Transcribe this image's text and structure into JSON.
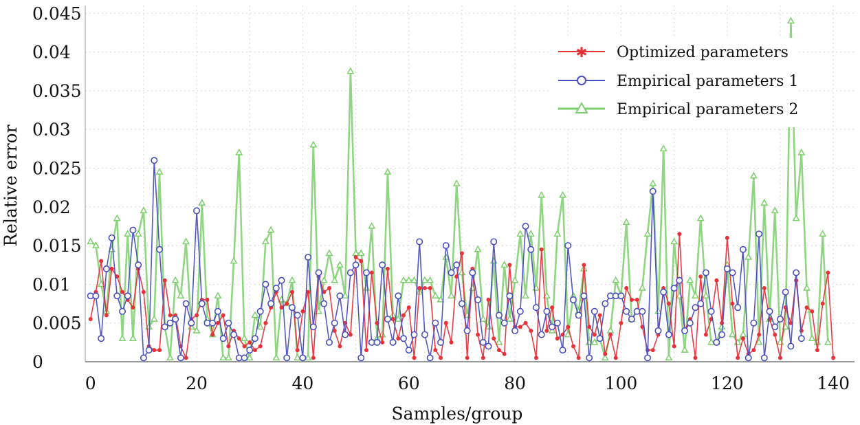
{
  "chart_data": {
    "type": "line",
    "title": "",
    "xlabel": "Samples/group",
    "ylabel": "Relative error",
    "xlim": [
      -1,
      144
    ],
    "ylim": [
      0,
      0.046
    ],
    "xticks": [
      0,
      20,
      40,
      60,
      80,
      100,
      120,
      140
    ],
    "xtick_labels": [
      "0",
      "20",
      "40",
      "60",
      "80",
      "100",
      "120",
      "140"
    ],
    "yticks": [
      0,
      0.005,
      0.01,
      0.015,
      0.02,
      0.025,
      0.03,
      0.035,
      0.04,
      0.045
    ],
    "ytick_labels": [
      "0",
      "0.005",
      "0.01",
      "0.015",
      "0.02",
      "0.025",
      "0.03",
      "0.035",
      "0.04",
      "0.045"
    ],
    "legend_position": "top-right",
    "series": [
      {
        "name": "Optimized parameters",
        "color": "#e8323a",
        "marker": "star",
        "values": [
          0.0055,
          0.009,
          0.013,
          0.006,
          0.012,
          0.011,
          0.009,
          0.008,
          0.007,
          0.012,
          0.009,
          0.002,
          0.0015,
          0.0015,
          0.0105,
          0.006,
          0.006,
          0.002,
          0.0005,
          0.0055,
          0.006,
          0.008,
          0.008,
          0.0035,
          0.005,
          0.006,
          0.002,
          0.004,
          0.003,
          0.002,
          0.0025,
          0.0015,
          0.002,
          0.005,
          0.007,
          0.009,
          0.007,
          0.0075,
          0.009,
          0.0015,
          0.0065,
          0.009,
          0.0005,
          0.011,
          0.009,
          0.0095,
          0.004,
          0.002,
          0.005,
          0.0035,
          0.0135,
          0.013,
          0.0015,
          0.0115,
          0.005,
          0.0025,
          0.012,
          0.0055,
          0.003,
          0.006,
          0.007,
          0.0005,
          0.0095,
          0.0095,
          0.0095,
          0.0015,
          0.0005,
          0.005,
          0.0025,
          0.011,
          0.014,
          0.0005,
          0.012,
          0.0035,
          0.0005,
          0.008,
          0.003,
          0.0015,
          0.001,
          0.0125,
          0.0045,
          0.0045,
          0.005,
          0.004,
          0.0005,
          0.0145,
          0.004,
          0.007,
          0.003,
          0.0035,
          0.0045,
          0.002,
          0.0005,
          0.0125,
          0.0045,
          0.0035,
          0.006,
          0.001,
          0.0035,
          0.0005,
          0.005,
          0.0095,
          0.008,
          0.008,
          0.0045,
          0.0015,
          0.0015,
          0.0035,
          0.0095,
          0.0075,
          0.002,
          0.0165,
          0.004,
          0.0055,
          0.0005,
          0.011,
          0.0035,
          0.0055,
          0.0105,
          0.005,
          0.016,
          0.0075,
          0.0005,
          0.003,
          0.001,
          0.0015,
          0.0035,
          0.0095,
          0.0055,
          0.0035,
          0.0005,
          0.007,
          0.005,
          0.0105,
          0.004,
          0.007,
          0.0065,
          0.0015,
          0.0075,
          0.0115,
          0.0005
        ]
      },
      {
        "name": "Empirical parameters 1",
        "color": "#4a4fc0",
        "marker": "circle",
        "values": [
          0.0085,
          0.0085,
          0.003,
          0.012,
          0.016,
          0.0085,
          0.0065,
          0.0085,
          0.017,
          0.0125,
          0.0005,
          0.0015,
          0.026,
          0.0145,
          0.0045,
          0.005,
          0.0055,
          0.0005,
          0.0075,
          0.005,
          0.0195,
          0.0075,
          0.005,
          0.005,
          0.0065,
          0.003,
          0.005,
          0.0035,
          0.0005,
          0.0005,
          0.0015,
          0.003,
          0.0065,
          0.01,
          0.0075,
          0.0095,
          0.0105,
          0.0005,
          0.007,
          0.006,
          0.0005,
          0.0135,
          0.0045,
          0.0115,
          0.0075,
          0.0025,
          0.005,
          0.0085,
          0.0035,
          0.0115,
          0.0125,
          0.0005,
          0.0115,
          0.0025,
          0.0025,
          0.0125,
          0.0055,
          0.0025,
          0.0085,
          0.003,
          0.0015,
          0.0035,
          0.0155,
          0.0035,
          0.0005,
          0.005,
          0.0025,
          0.015,
          0.0115,
          0.0125,
          0.0075,
          0.004,
          0.0115,
          0.008,
          0.0025,
          0.002,
          0.0155,
          0.006,
          0.005,
          0.0085,
          0.004,
          0.0065,
          0.0175,
          0.0145,
          0.007,
          0.0035,
          0.0065,
          0.0045,
          0.005,
          0.0015,
          0.015,
          0.008,
          0.006,
          0.0085,
          0.0005,
          0.0065,
          0.003,
          0.0075,
          0.0085,
          0.0085,
          0.0085,
          0.0065,
          0.0055,
          0.0065,
          0.0065,
          0.0005,
          0.022,
          0.004,
          0.009,
          0.0035,
          0.0095,
          0.0105,
          0.004,
          0.005,
          0.007,
          0.0075,
          0.0115,
          0.0065,
          0.0025,
          0.0035,
          0.012,
          0.0115,
          0.007,
          0.0145,
          0.0005,
          0.005,
          0.0165,
          0.0005,
          0.0065,
          0.0045,
          0.0055,
          0.009,
          0.002,
          0.0115,
          0.003
        ]
      },
      {
        "name": "Empirical parameters 2",
        "color": "#7ccf6c",
        "marker": "triangle",
        "values": [
          0.0155,
          0.015,
          0.01,
          0.0065,
          0.0145,
          0.0185,
          0.003,
          0.0165,
          0.003,
          0.0165,
          0.0195,
          0.0045,
          0.0055,
          0.0245,
          0.0045,
          0.0005,
          0.0105,
          0.0085,
          0.0155,
          0.0045,
          0.004,
          0.0205,
          0.0055,
          0.0035,
          0.0085,
          0.0005,
          0.0005,
          0.013,
          0.027,
          0.003,
          0.0005,
          0.006,
          0.0045,
          0.0155,
          0.017,
          0.0005,
          0.008,
          0.0075,
          0.0105,
          0.0005,
          0.0005,
          0.0005,
          0.028,
          0.0065,
          0.0105,
          0.014,
          0.0105,
          0.0125,
          0.0085,
          0.0375,
          0.014,
          0.014,
          0.0095,
          0.0175,
          0.003,
          0.0035,
          0.0245,
          0.006,
          0.0055,
          0.0105,
          0.0105,
          0.0105,
          0.009,
          0.0105,
          0.0105,
          0.0085,
          0.008,
          0.0135,
          0.0085,
          0.023,
          0.0115,
          0.006,
          0.0095,
          0.0145,
          0.0055,
          0.0045,
          0.013,
          0.0025,
          0.0125,
          0.0055,
          0.0105,
          0.0165,
          0.0085,
          0.0165,
          0.0095,
          0.0215,
          0.0085,
          0.004,
          0.0165,
          0.0215,
          0.0035,
          0.0085,
          0.0065,
          0.012,
          0.0025,
          0.0025,
          0.003,
          0.0005,
          0.004,
          0.0105,
          0.0085,
          0.018,
          0.0055,
          0.0065,
          0.0095,
          0.0165,
          0.023,
          0.0065,
          0.0275,
          0.0005,
          0.0155,
          0.0085,
          0.0015,
          0.0105,
          0.0085,
          0.0185,
          0.0085,
          0.0025,
          0.0025,
          0.0045,
          0.0125,
          0.0035,
          0.0025,
          0.0035,
          0.0135,
          0.024,
          0.0025,
          0.0205,
          0.0055,
          0.0195,
          0.0025,
          0.0045,
          0.044,
          0.0185,
          0.027,
          0.0095,
          0.003,
          0.0025,
          0.0165,
          0.0025
        ]
      }
    ]
  }
}
